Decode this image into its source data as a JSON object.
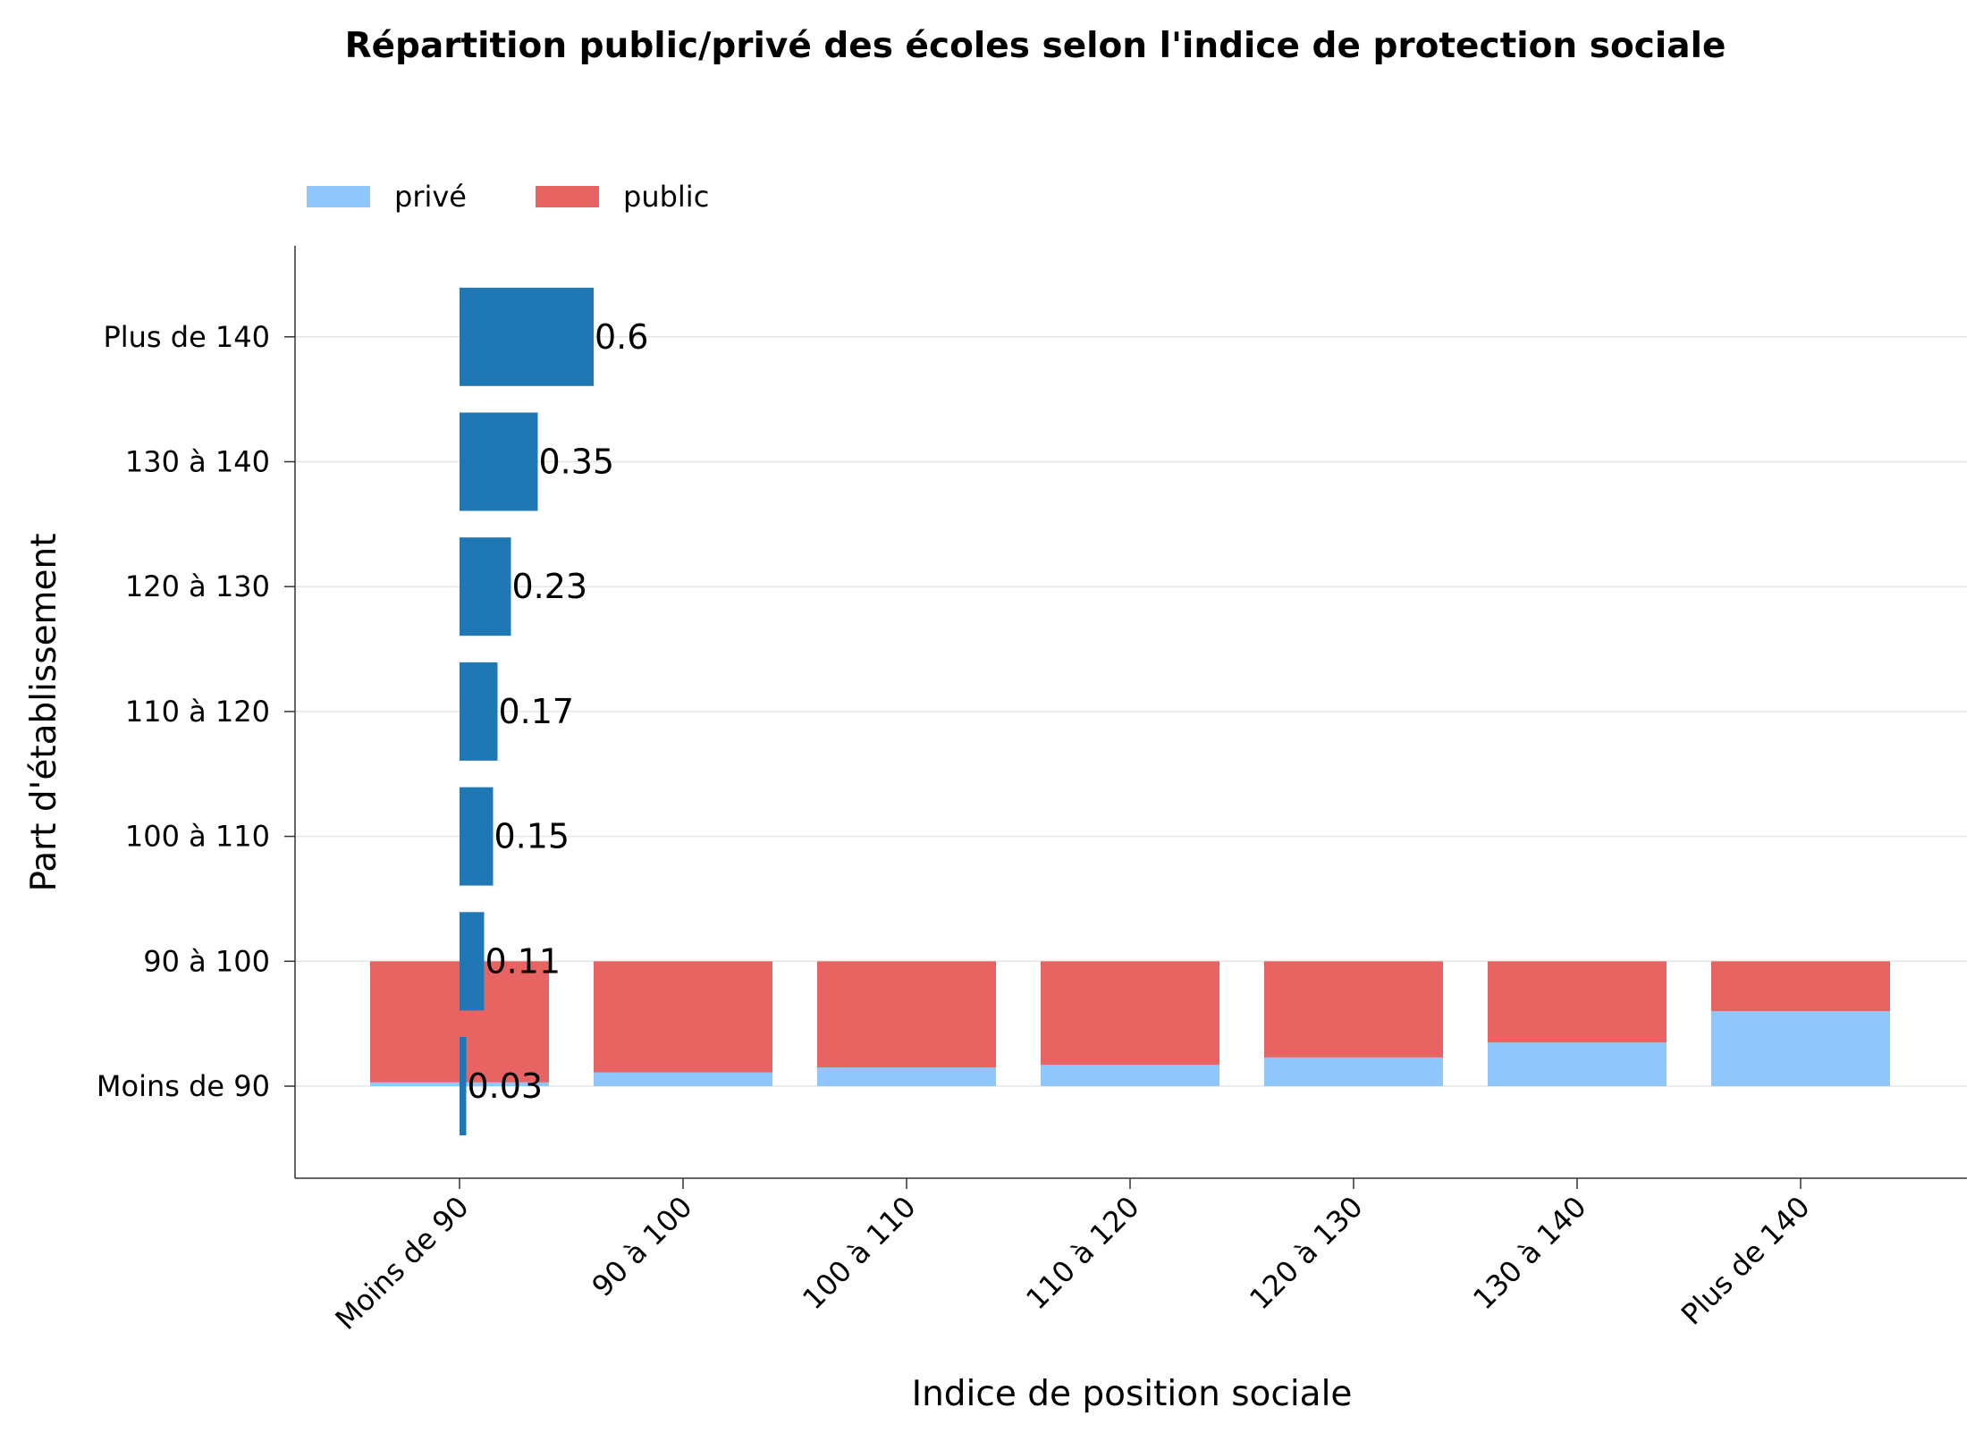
{
  "chart_data": {
    "type": "bar",
    "title": "Répartition public/privé des écoles selon l'indice de protection sociale",
    "xlabel": "Indice de position sociale",
    "ylabel": "Part d'établissement",
    "categories": [
      "Moins de 90",
      "90 à 100",
      "100 à 110",
      "110 à 120",
      "120 à 130",
      "130 à 140",
      "Plus de 140"
    ],
    "legend": {
      "placement": "top-left",
      "entries": [
        "privé",
        "public"
      ]
    },
    "grid": true,
    "series": [
      {
        "name": "privé",
        "type": "stacked-bar",
        "color": "#8fc6fb",
        "values": [
          0.03,
          0.11,
          0.15,
          0.17,
          0.23,
          0.35,
          0.6
        ]
      },
      {
        "name": "public",
        "type": "stacked-bar",
        "color": "#e86462",
        "values": [
          0.97,
          0.89,
          0.85,
          0.83,
          0.77,
          0.65,
          0.4
        ]
      },
      {
        "type": "horizontal-bar",
        "color": "#1f78b4",
        "values": [
          0.03,
          0.11,
          0.15,
          0.17,
          0.23,
          0.35,
          0.6
        ],
        "labels": [
          "0.03",
          "0.11",
          "0.15",
          "0.17",
          "0.23",
          "0.35",
          "0.6"
        ]
      }
    ]
  }
}
